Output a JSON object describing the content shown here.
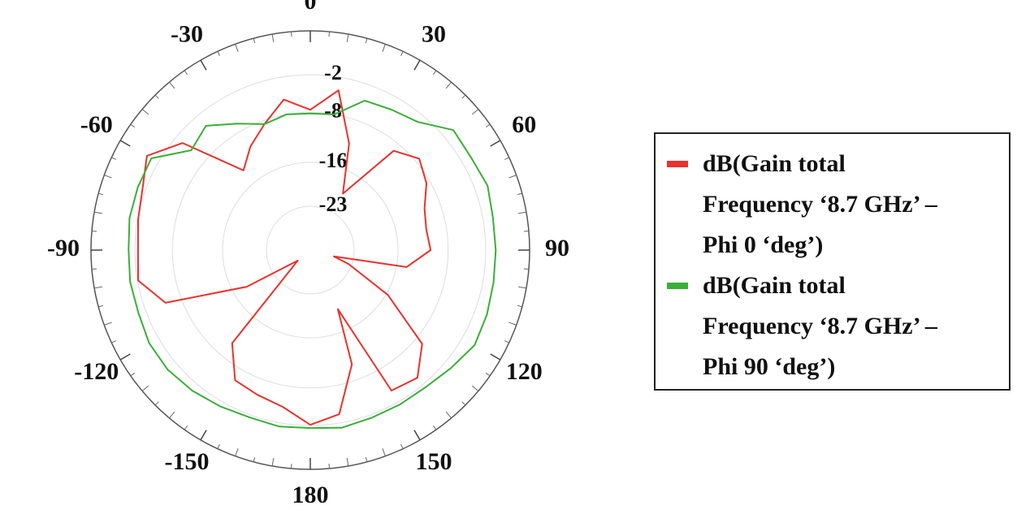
{
  "chart_data": {
    "type": "polar",
    "rlim": [
      -30,
      5
    ],
    "rticks": [
      -2,
      -8,
      -16,
      -23
    ],
    "thetaticks": [
      0,
      30,
      60,
      90,
      120,
      150,
      180,
      -150,
      -120,
      -90,
      -60,
      -30
    ],
    "grid": true,
    "direction": "clockwise",
    "zero": "top",
    "legend": "right",
    "series": [
      {
        "name": "dB(Gain total\nFrequency ‘8.7 GHz’ –\n Phi 0 ‘deg’)",
        "color": "#e8322e",
        "theta": [
          -180,
          -170,
          -160,
          -150,
          -140,
          -130,
          -120,
          -110,
          -100,
          -90,
          -80,
          -70,
          -60,
          -50,
          -40,
          -30,
          -20,
          -10,
          0,
          10,
          20,
          30,
          40,
          50,
          60,
          70,
          80,
          90,
          100,
          105,
          110,
          120,
          130,
          140,
          150,
          155,
          160,
          170,
          180
        ],
        "values": [
          -2.1,
          -4.6,
          -5.4,
          -6.0,
          -10.6,
          -27.4,
          -18.3,
          -5.4,
          -2.1,
          -2.5,
          -2.1,
          -1.5,
          0.1,
          -3.4,
          -13.4,
          -10.9,
          -8.6,
          -5.6,
          -7.6,
          -4.1,
          -11.9,
          -19.6,
          -9.3,
          -7.3,
          -8.6,
          -10.6,
          -11.2,
          -10.8,
          -14.4,
          -26.1,
          -23.5,
          -15.7,
          -6.7,
          -3.4,
          -4.1,
          -19.6,
          -10.6,
          -3.4,
          -2.1
        ]
      },
      {
        "name": "dB(Gain total\nFrequency ‘8.7 GHz’ –\nPhi 90 ‘deg’)",
        "color": "#3aae3a",
        "theta": [
          -180,
          -170,
          -160,
          -150,
          -140,
          -130,
          -120,
          -110,
          -100,
          -90,
          -80,
          -70,
          -60,
          -50,
          -40,
          -30,
          -20,
          -10,
          0,
          10,
          20,
          30,
          40,
          50,
          60,
          70,
          80,
          90,
          100,
          110,
          120,
          130,
          140,
          150,
          160,
          170,
          180
        ],
        "values": [
          -1.6,
          -1.4,
          -1.6,
          -1.2,
          -0.7,
          -0.3,
          -0.3,
          -0.8,
          -0.8,
          -1.0,
          -0.7,
          -0.7,
          -0.7,
          -5.2,
          -4.1,
          -6.7,
          -8.6,
          -8.0,
          -8.2,
          -8.0,
          -4.6,
          -4.1,
          -3.3,
          -0.2,
          -0.4,
          0.1,
          -0.4,
          -0.4,
          -0.3,
          0.0,
          0.3,
          -0.7,
          -1.4,
          -1.5,
          -1.5,
          -1.2,
          -1.6
        ]
      }
    ]
  }
}
